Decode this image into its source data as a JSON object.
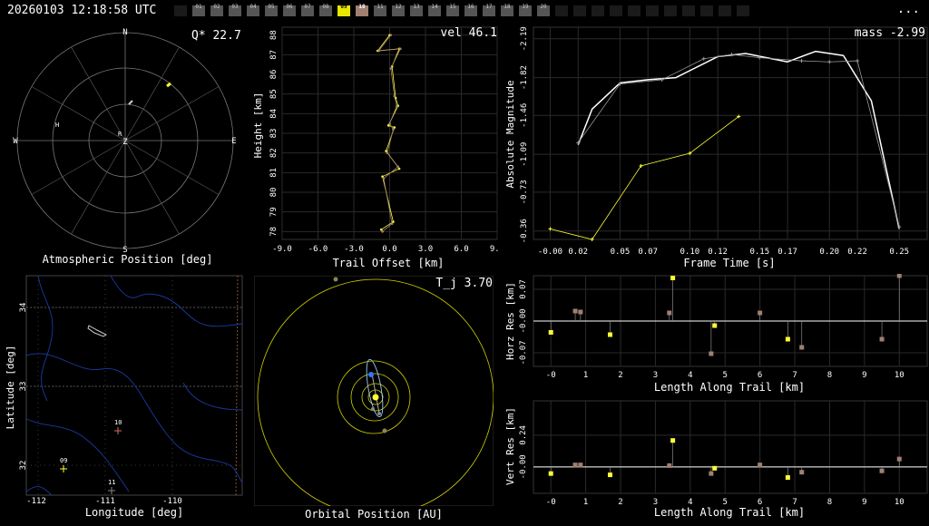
{
  "header": {
    "timestamp": "20260103 12:18:58 UTC",
    "more_label": "...",
    "cameras": [
      {
        "label": "",
        "state": "dim"
      },
      {
        "label": "01",
        "state": "normal"
      },
      {
        "label": "02",
        "state": "normal"
      },
      {
        "label": "03",
        "state": "normal"
      },
      {
        "label": "04",
        "state": "normal"
      },
      {
        "label": "05",
        "state": "normal"
      },
      {
        "label": "06",
        "state": "normal"
      },
      {
        "label": "07",
        "state": "normal"
      },
      {
        "label": "08",
        "state": "normal"
      },
      {
        "label": "09",
        "state": "selected-yellow"
      },
      {
        "label": "10",
        "state": "selected-pink"
      },
      {
        "label": "11",
        "state": "normal"
      },
      {
        "label": "12",
        "state": "normal"
      },
      {
        "label": "13",
        "state": "normal"
      },
      {
        "label": "14",
        "state": "normal"
      },
      {
        "label": "15",
        "state": "normal"
      },
      {
        "label": "16",
        "state": "normal"
      },
      {
        "label": "17",
        "state": "normal"
      },
      {
        "label": "18",
        "state": "normal"
      },
      {
        "label": "19",
        "state": "normal"
      },
      {
        "label": "20",
        "state": "normal"
      },
      {
        "label": "",
        "state": "dim"
      },
      {
        "label": "",
        "state": "dim"
      },
      {
        "label": "",
        "state": "dim"
      },
      {
        "label": "",
        "state": "dim"
      },
      {
        "label": "",
        "state": "dim"
      },
      {
        "label": "",
        "state": "dim"
      },
      {
        "label": "",
        "state": "dim"
      },
      {
        "label": "",
        "state": "dim"
      },
      {
        "label": "",
        "state": "dim"
      },
      {
        "label": "",
        "state": "dim"
      },
      {
        "label": "",
        "state": "dim"
      }
    ]
  },
  "sky": {
    "caption": "Atmospheric Position [deg]",
    "readout": "Q* 22.7",
    "dirs": {
      "n": "N",
      "s": "S",
      "e": "E",
      "w": "W",
      "z": "Z"
    },
    "markers": {
      "a": "H",
      "b": "R"
    }
  },
  "height": {
    "readout": "vel 46.1",
    "xlabel": "Trail Offset [km]",
    "ylabel": "Height [km]",
    "xticks": [
      "-9.0",
      "-6.0",
      "-3.0",
      "0.0",
      "3.0",
      "6.0",
      "9.0"
    ],
    "yticks": [
      "78",
      "79",
      "80",
      "81",
      "82",
      "83",
      "84",
      "85",
      "86",
      "87",
      "88"
    ]
  },
  "mag": {
    "readout": "mass -2.99",
    "xlabel": "Frame Time [s]",
    "ylabel": "Absolute Magnitude",
    "xticks": [
      "-0.00",
      "0.02",
      "0.05",
      "0.07",
      "0.10",
      "0.12",
      "0.15",
      "0.17",
      "0.20",
      "0.22",
      "0.25"
    ],
    "yticks": [
      "-2.19",
      "-1.82",
      "-1.46",
      "-1.09",
      "-0.73",
      "-0.36"
    ]
  },
  "map": {
    "caption": "Longitude [deg]",
    "ylabel": "Latitude [deg]",
    "xticks": [
      "-112",
      "-111",
      "-110"
    ],
    "yticks": [
      "34",
      "33",
      "32"
    ],
    "stations": {
      "s09": "09",
      "s10": "10",
      "s11": "11"
    }
  },
  "orbit": {
    "caption": "Orbital Position [AU]",
    "readout": "T_j 3.70"
  },
  "horz": {
    "ylabel": "Horz Res [km]",
    "xlabel": "Length Along Trail [km]",
    "yticks": [
      "0.07",
      "-0.00",
      "-0.07"
    ],
    "xticks": [
      "-0",
      "1",
      "2",
      "3",
      "4",
      "5",
      "6",
      "7",
      "8",
      "9",
      "10"
    ]
  },
  "vert": {
    "ylabel": "Vert Res [km]",
    "xlabel": "Length Along Trail [km]",
    "yticks": [
      "0.24",
      "-0.00"
    ],
    "xticks": [
      "-0",
      "1",
      "2",
      "3",
      "4",
      "5",
      "6",
      "7",
      "8",
      "9",
      "10"
    ]
  },
  "chart_data": [
    {
      "type": "line",
      "name": "height_vs_offset",
      "x_range": [
        -9,
        9
      ],
      "y_range": [
        77.6,
        88.4
      ],
      "series": [
        {
          "points": [
            [
              0.0,
              88
            ],
            [
              -1.0,
              87.2
            ],
            [
              0.8,
              87.3
            ],
            [
              0.2,
              86.4
            ],
            [
              0.5,
              84.8
            ],
            [
              0.7,
              84.4
            ],
            [
              -0.1,
              83.4
            ],
            [
              0.4,
              83.3
            ],
            [
              -0.3,
              82.1
            ],
            [
              0.8,
              81.2
            ],
            [
              -0.6,
              80.8
            ],
            [
              0.3,
              78.5
            ],
            [
              -0.7,
              78.1
            ]
          ],
          "color": "#ffff33"
        },
        {
          "points": [
            [
              0.1,
              88
            ],
            [
              -0.9,
              87.2
            ],
            [
              0.9,
              87.3
            ],
            [
              0.1,
              86.3
            ],
            [
              0.4,
              84.9
            ],
            [
              0.6,
              84.4
            ],
            [
              0.0,
              83.5
            ],
            [
              0.3,
              83.2
            ],
            [
              -0.2,
              82.0
            ],
            [
              0.7,
              81.3
            ],
            [
              -0.5,
              80.7
            ],
            [
              0.2,
              78.4
            ],
            [
              -0.6,
              78.0
            ]
          ],
          "color": "#a08070"
        }
      ]
    },
    {
      "type": "line",
      "name": "magnitude_vs_time",
      "x_range": [
        -0.012,
        0.27
      ],
      "y_range": [
        -2.3,
        -0.28
      ],
      "series": [
        {
          "name": "fit",
          "x": [
            0.02,
            0.03,
            0.05,
            0.07,
            0.09,
            0.12,
            0.14,
            0.17,
            0.19,
            0.21,
            0.23,
            0.25
          ],
          "y": [
            -1.18,
            -1.52,
            -1.77,
            -1.8,
            -1.82,
            -2.02,
            -2.05,
            -1.97,
            -2.07,
            -2.03,
            -1.6,
            -0.38
          ],
          "color": "#ffffff"
        },
        {
          "name": "site10",
          "x": [
            0.02,
            0.05,
            0.08,
            0.11,
            0.13,
            0.15,
            0.18,
            0.2,
            0.22,
            0.25
          ],
          "y": [
            -1.2,
            -1.76,
            -1.8,
            -2.0,
            -2.04,
            -2.01,
            -1.98,
            -1.97,
            -1.98,
            -0.4
          ],
          "color": "#999999"
        },
        {
          "name": "site09",
          "x": [
            0.0,
            0.03,
            0.065,
            0.1,
            0.135
          ],
          "y": [
            -0.38,
            -0.28,
            -0.98,
            -1.1,
            -1.45
          ],
          "color": "#ffff33"
        }
      ]
    },
    {
      "type": "scatter",
      "name": "horizontal_residuals",
      "x_range": [
        -0.5,
        10.8
      ],
      "y_range": [
        -0.1,
        0.1
      ],
      "series": [
        {
          "color": "#ffff33",
          "x": [
            0.0,
            1.7,
            3.5,
            4.7,
            6.8
          ],
          "y": [
            -0.025,
            -0.03,
            0.095,
            -0.01,
            -0.04
          ]
        },
        {
          "color": "#a08070",
          "x": [
            0.7,
            0.85,
            3.4,
            4.6,
            6.0,
            7.2,
            9.5,
            10.0
          ],
          "y": [
            0.022,
            0.02,
            0.018,
            -0.072,
            0.018,
            -0.058,
            -0.04,
            0.1
          ]
        }
      ]
    },
    {
      "type": "scatter",
      "name": "vertical_residuals",
      "x_range": [
        -0.5,
        10.8
      ],
      "y_range": [
        -0.2,
        0.5
      ],
      "series": [
        {
          "color": "#ffff33",
          "x": [
            0.0,
            1.7,
            3.5,
            4.7,
            6.8
          ],
          "y": [
            -0.05,
            -0.06,
            0.2,
            -0.01,
            -0.08
          ]
        },
        {
          "color": "#a08070",
          "x": [
            0.7,
            0.85,
            3.4,
            4.6,
            6.0,
            7.2,
            9.5,
            10.0
          ],
          "y": [
            0.015,
            0.015,
            0.01,
            -0.05,
            0.015,
            -0.04,
            -0.03,
            0.06
          ]
        }
      ]
    }
  ]
}
